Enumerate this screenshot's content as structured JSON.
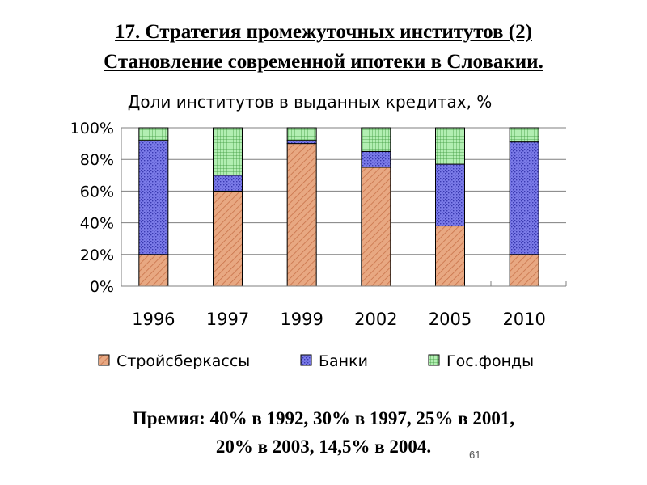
{
  "slide": {
    "title_line1": "17. Стратегия промежуточных институтов (2)",
    "title_line2": "Становление современной ипотеки в Словакии.",
    "premium_line1": "Премия: 40% в 1992, 30% в 1997, 25% в 2001,",
    "premium_line2": "20% в 2003, 14,5% в 2004.",
    "page_number": "61"
  },
  "colors": {
    "stroibank": "#e8a882",
    "banks": "#7b7be8",
    "funds": "#b2eeb2"
  },
  "chart_data": {
    "type": "bar",
    "stacked": true,
    "title": "Доли институтов в выданных кредитах, %",
    "categories": [
      "1996",
      "1997",
      "1999",
      "2002",
      "2005",
      "2010"
    ],
    "series": [
      {
        "name": "Стройсберкассы",
        "values": [
          20,
          60,
          90,
          75,
          38,
          20
        ]
      },
      {
        "name": "Банки",
        "values": [
          72,
          10,
          2,
          10,
          39,
          71
        ]
      },
      {
        "name": "Гос.фонды",
        "values": [
          8,
          30,
          8,
          15,
          23,
          9
        ]
      }
    ],
    "ylim": [
      0,
      100
    ],
    "yticks": [
      "0%",
      "20%",
      "40%",
      "60%",
      "80%",
      "100%"
    ],
    "grid": true,
    "legend": "bottom"
  }
}
